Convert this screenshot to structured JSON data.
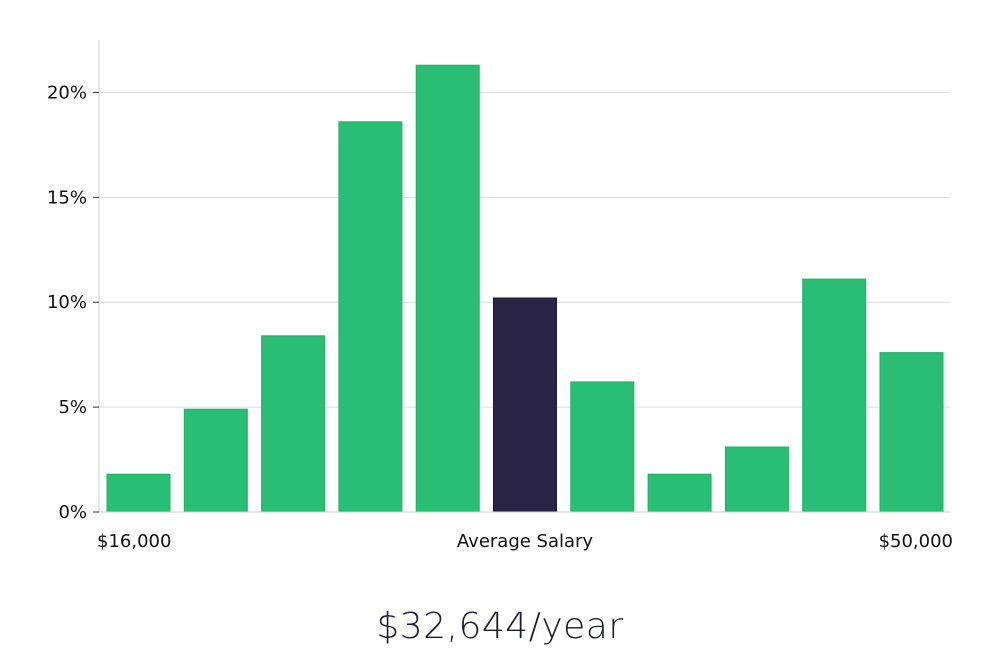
{
  "chart_data": {
    "type": "bar",
    "values": [
      1.8,
      4.9,
      8.4,
      18.6,
      21.3,
      10.2,
      6.2,
      1.8,
      3.1,
      11.1,
      7.6
    ],
    "highlight_index": 5,
    "ylim": [
      0,
      22.5
    ],
    "yticks": [
      0,
      5,
      10,
      15,
      20
    ],
    "ytick_labels": [
      "0%",
      "5%",
      "10%",
      "15%",
      "20%"
    ],
    "x_labels": {
      "left": "$16,000",
      "center": "Average Salary",
      "right": "$50,000"
    },
    "grid": true,
    "colors": {
      "bar": "#28be74",
      "highlight": "#2a2546",
      "grid": "#dcdcdc",
      "axis": "#d0d0d0"
    }
  },
  "salary": "$32,644/year"
}
